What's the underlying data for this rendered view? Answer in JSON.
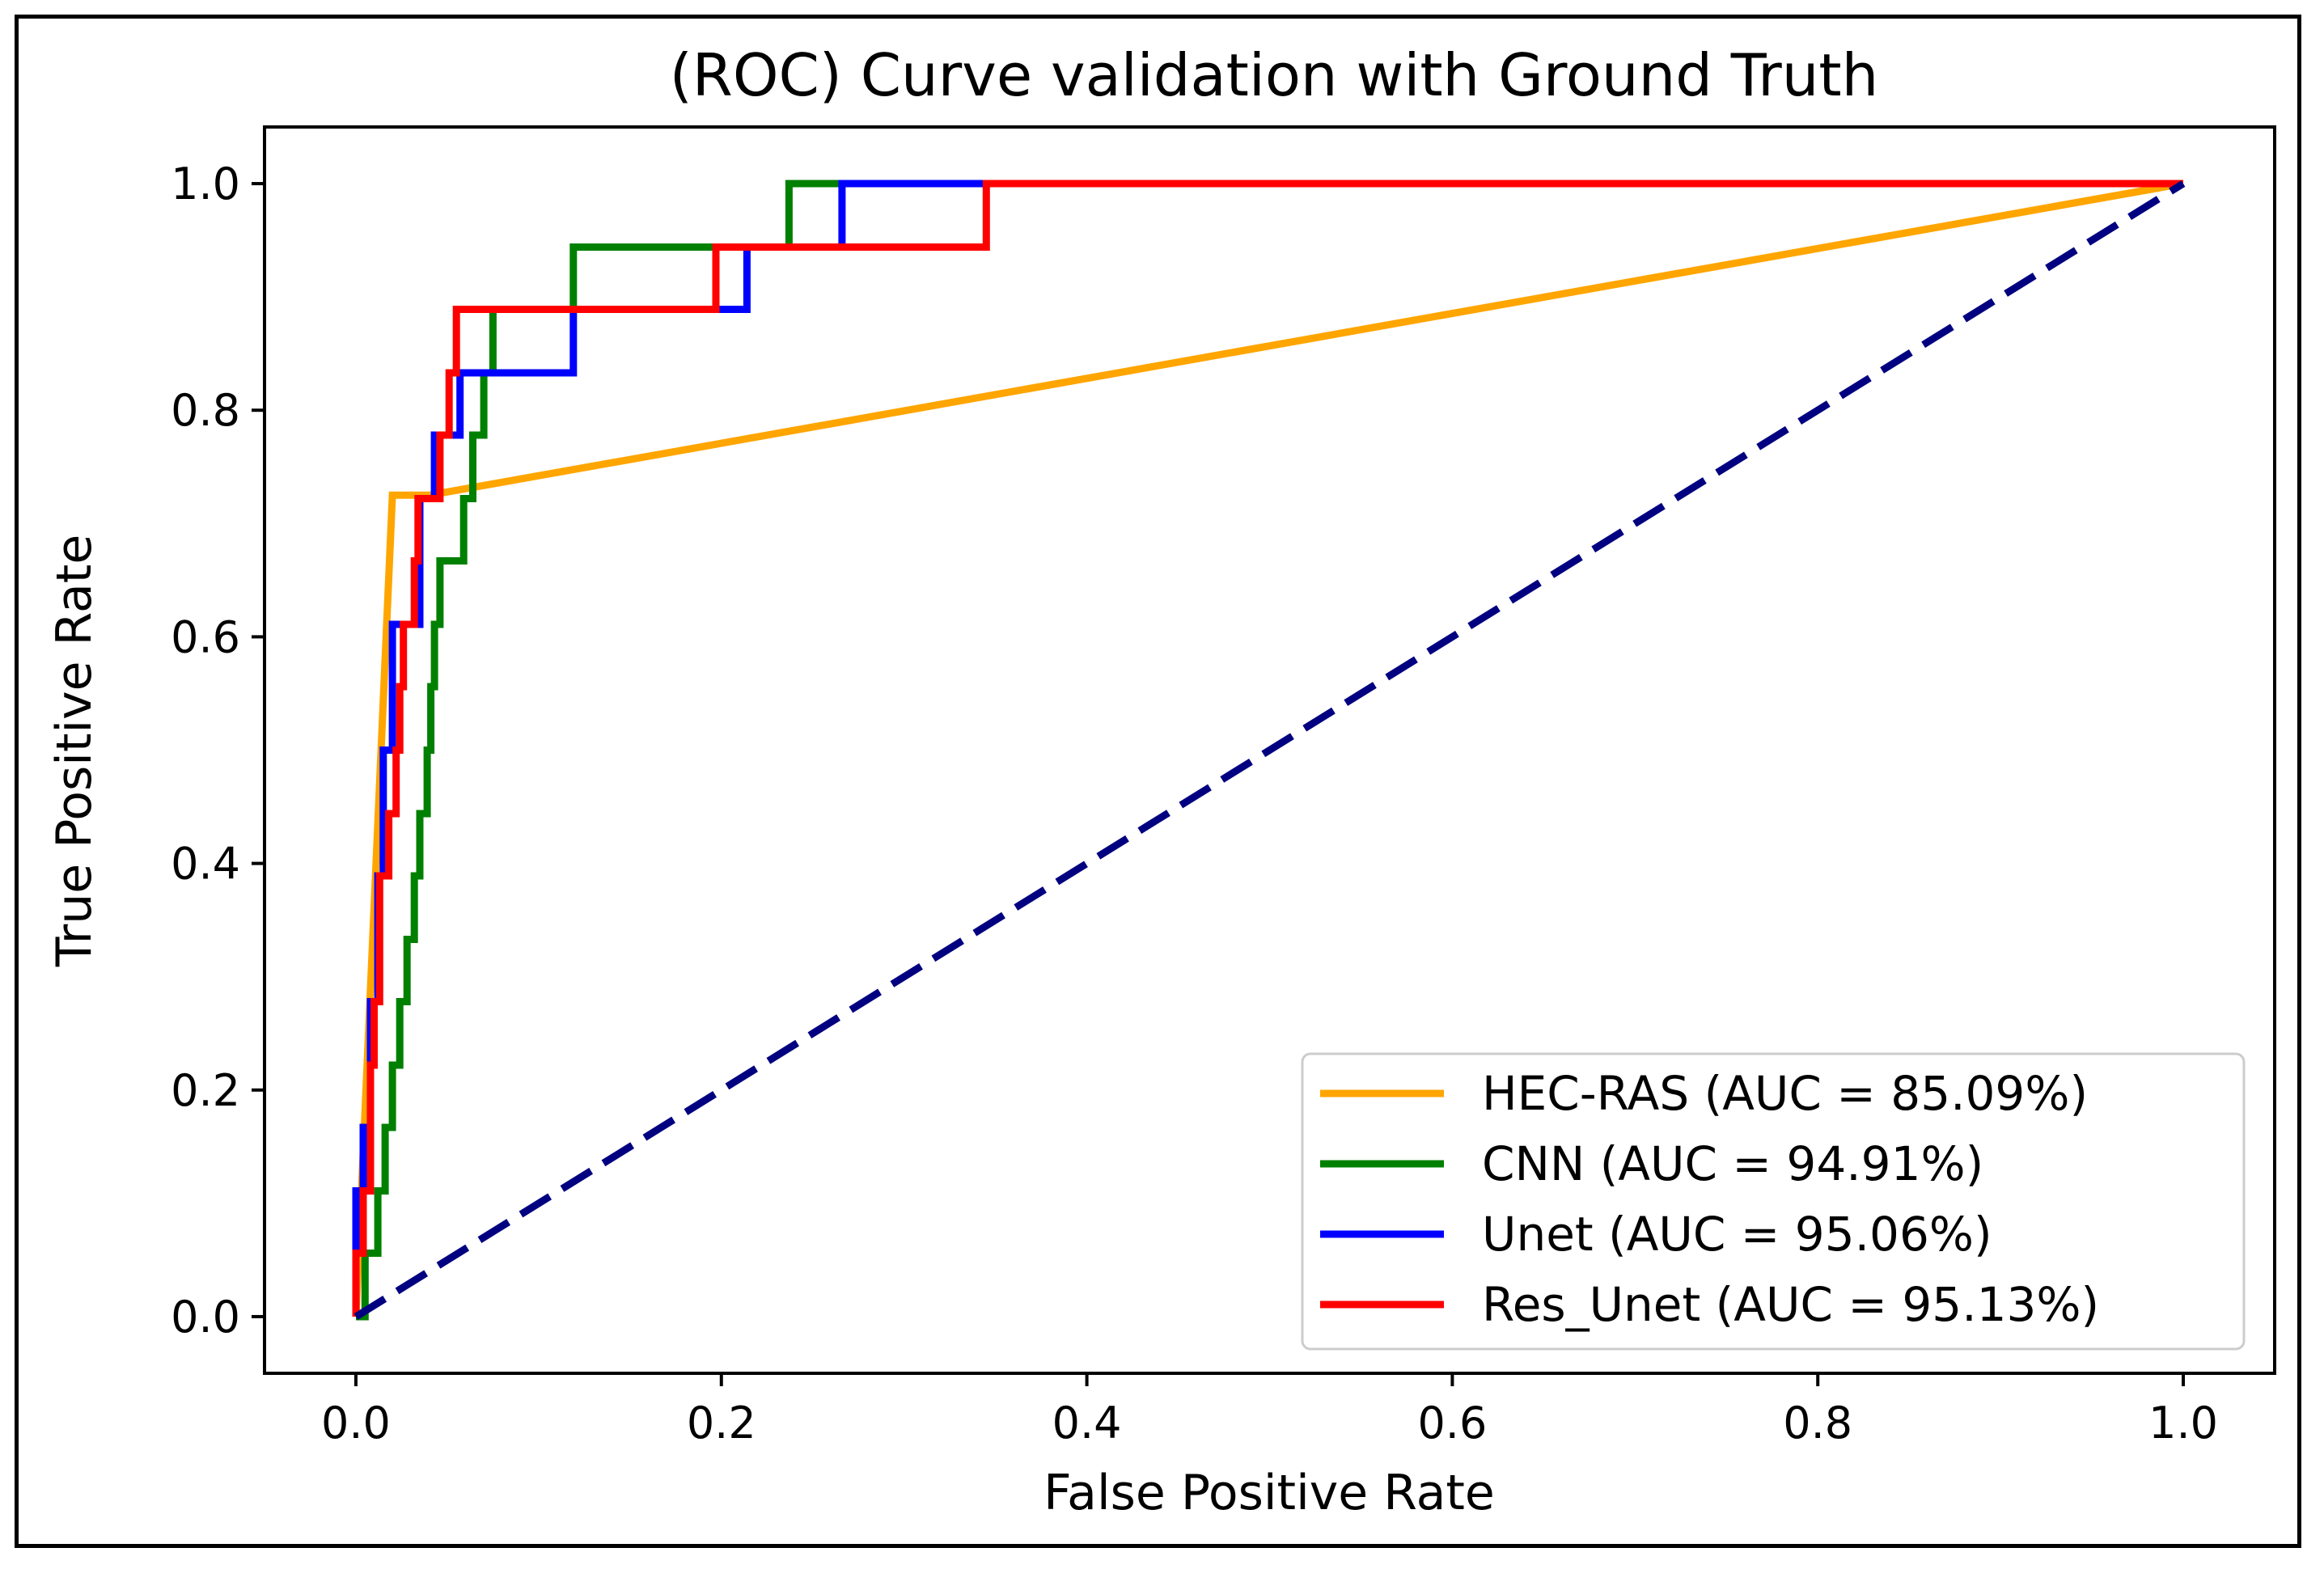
{
  "chart_data": {
    "type": "line",
    "title": "(ROC) Curve validation with Ground Truth",
    "xlabel": "False Positive Rate",
    "ylabel": "True Positive Rate",
    "xlim": [
      -0.05,
      1.05
    ],
    "ylim": [
      -0.05,
      1.05
    ],
    "xticks": [
      0.0,
      0.2,
      0.4,
      0.6,
      0.8,
      1.0
    ],
    "yticks": [
      0.0,
      0.2,
      0.4,
      0.6,
      0.8,
      1.0
    ],
    "xtick_labels": [
      "0.0",
      "0.2",
      "0.4",
      "0.6",
      "0.8",
      "1.0"
    ],
    "ytick_labels": [
      "0.0",
      "0.2",
      "0.4",
      "0.6",
      "0.8",
      "1.0"
    ],
    "legend_position": "bottom-right",
    "grid": false,
    "series": [
      {
        "name": "HEC-RAS (AUC = 85.09%)",
        "key": "hec-ras",
        "color": "#ffa500",
        "dashed": false,
        "points": [
          [
            0.0,
            0.0
          ],
          [
            0.02,
            0.725
          ],
          [
            0.04,
            0.725
          ],
          [
            1.0,
            1.0
          ]
        ]
      },
      {
        "name": "CNN (AUC = 94.91%)",
        "key": "cnn",
        "color": "#008000",
        "dashed": false,
        "points": [
          [
            0.0,
            0.0
          ],
          [
            0.005,
            0.0
          ],
          [
            0.005,
            0.056
          ],
          [
            0.012,
            0.056
          ],
          [
            0.012,
            0.111
          ],
          [
            0.016,
            0.111
          ],
          [
            0.016,
            0.167
          ],
          [
            0.02,
            0.167
          ],
          [
            0.02,
            0.222
          ],
          [
            0.024,
            0.222
          ],
          [
            0.024,
            0.278
          ],
          [
            0.028,
            0.278
          ],
          [
            0.028,
            0.333
          ],
          [
            0.032,
            0.333
          ],
          [
            0.032,
            0.389
          ],
          [
            0.035,
            0.389
          ],
          [
            0.035,
            0.444
          ],
          [
            0.039,
            0.444
          ],
          [
            0.039,
            0.5
          ],
          [
            0.041,
            0.5
          ],
          [
            0.041,
            0.556
          ],
          [
            0.043,
            0.556
          ],
          [
            0.043,
            0.611
          ],
          [
            0.046,
            0.611
          ],
          [
            0.046,
            0.667
          ],
          [
            0.059,
            0.667
          ],
          [
            0.059,
            0.722
          ],
          [
            0.064,
            0.722
          ],
          [
            0.064,
            0.778
          ],
          [
            0.07,
            0.778
          ],
          [
            0.07,
            0.833
          ],
          [
            0.075,
            0.833
          ],
          [
            0.075,
            0.889
          ],
          [
            0.119,
            0.889
          ],
          [
            0.119,
            0.944
          ],
          [
            0.237,
            0.944
          ],
          [
            0.237,
            1.0
          ],
          [
            1.0,
            1.0
          ]
        ]
      },
      {
        "name": "Unet (AUC = 95.06%)",
        "key": "unet",
        "color": "#0000ff",
        "dashed": false,
        "points": [
          [
            0.0,
            0.0
          ],
          [
            0.0,
            0.111
          ],
          [
            0.004,
            0.111
          ],
          [
            0.004,
            0.167
          ],
          [
            0.008,
            0.167
          ],
          [
            0.008,
            0.278
          ],
          [
            0.012,
            0.278
          ],
          [
            0.012,
            0.389
          ],
          [
            0.015,
            0.389
          ],
          [
            0.015,
            0.5
          ],
          [
            0.02,
            0.5
          ],
          [
            0.02,
            0.611
          ],
          [
            0.035,
            0.611
          ],
          [
            0.035,
            0.722
          ],
          [
            0.043,
            0.722
          ],
          [
            0.043,
            0.778
          ],
          [
            0.057,
            0.778
          ],
          [
            0.057,
            0.833
          ],
          [
            0.119,
            0.833
          ],
          [
            0.119,
            0.889
          ],
          [
            0.214,
            0.889
          ],
          [
            0.214,
            0.944
          ],
          [
            0.266,
            0.944
          ],
          [
            0.266,
            1.0
          ],
          [
            1.0,
            1.0
          ]
        ]
      },
      {
        "name": "Res_Unet (AUC = 95.13%)",
        "key": "res-unet",
        "color": "#ff0000",
        "dashed": false,
        "points": [
          [
            0.0,
            0.0
          ],
          [
            0.0,
            0.056
          ],
          [
            0.004,
            0.056
          ],
          [
            0.004,
            0.111
          ],
          [
            0.008,
            0.111
          ],
          [
            0.008,
            0.222
          ],
          [
            0.01,
            0.222
          ],
          [
            0.01,
            0.278
          ],
          [
            0.013,
            0.278
          ],
          [
            0.013,
            0.389
          ],
          [
            0.018,
            0.389
          ],
          [
            0.018,
            0.444
          ],
          [
            0.022,
            0.444
          ],
          [
            0.022,
            0.5
          ],
          [
            0.024,
            0.5
          ],
          [
            0.024,
            0.556
          ],
          [
            0.026,
            0.556
          ],
          [
            0.026,
            0.611
          ],
          [
            0.032,
            0.611
          ],
          [
            0.032,
            0.667
          ],
          [
            0.034,
            0.667
          ],
          [
            0.034,
            0.722
          ],
          [
            0.046,
            0.722
          ],
          [
            0.046,
            0.778
          ],
          [
            0.051,
            0.778
          ],
          [
            0.051,
            0.833
          ],
          [
            0.055,
            0.833
          ],
          [
            0.055,
            0.889
          ],
          [
            0.197,
            0.889
          ],
          [
            0.197,
            0.944
          ],
          [
            0.345,
            0.944
          ],
          [
            0.345,
            1.0
          ],
          [
            1.0,
            1.0
          ]
        ]
      }
    ],
    "reference_line": {
      "color": "#000080",
      "dashed": true,
      "points": [
        [
          0.0,
          0.0
        ],
        [
          1.0,
          1.0
        ]
      ]
    }
  }
}
